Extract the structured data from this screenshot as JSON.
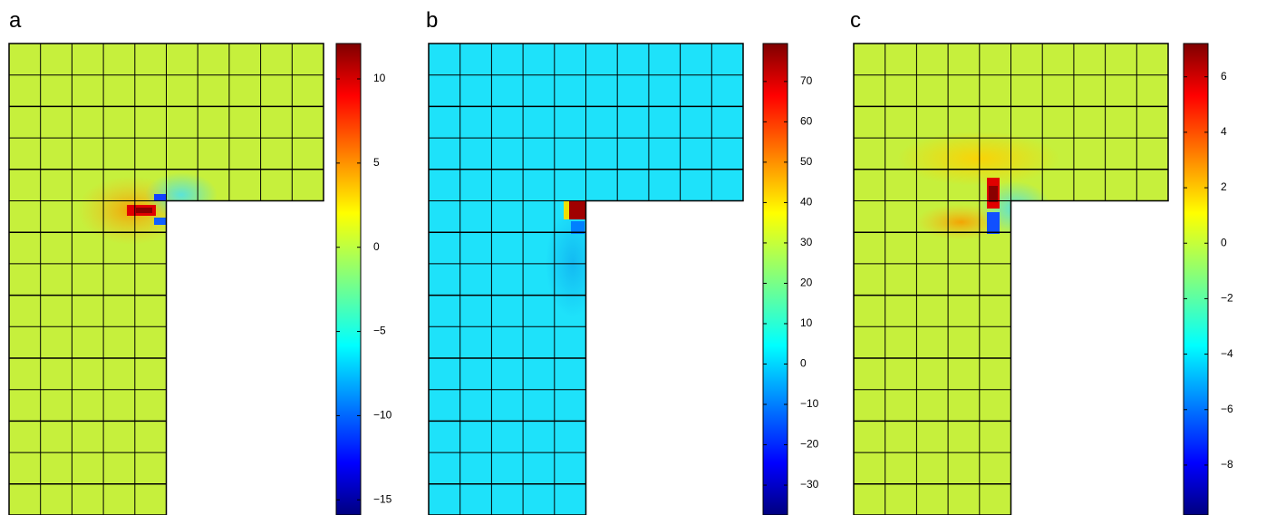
{
  "panels": [
    {
      "label": "a",
      "clim": [
        -15.9,
        12.1
      ],
      "ticks": [
        10,
        5,
        0,
        {
          "value": -5,
          "label": "−5"
        },
        {
          "value": -10,
          "label": "−10"
        },
        {
          "value": -15,
          "label": "−15"
        }
      ]
    },
    {
      "label": "b",
      "clim": [
        -37.4,
        79.4
      ],
      "ticks": [
        70,
        60,
        50,
        40,
        30,
        20,
        10,
        0,
        {
          "value": -10,
          "label": "−10"
        },
        {
          "value": -20,
          "label": "−20"
        },
        {
          "value": -30,
          "label": "−30"
        }
      ]
    },
    {
      "label": "c",
      "clim": [
        -9.8,
        7.2
      ],
      "ticks": [
        6,
        4,
        2,
        0,
        {
          "value": -2,
          "label": "−2"
        },
        {
          "value": -4,
          "label": "−4"
        },
        {
          "value": -6,
          "label": "−6"
        },
        {
          "value": -8,
          "label": "−8"
        }
      ]
    }
  ]
}
